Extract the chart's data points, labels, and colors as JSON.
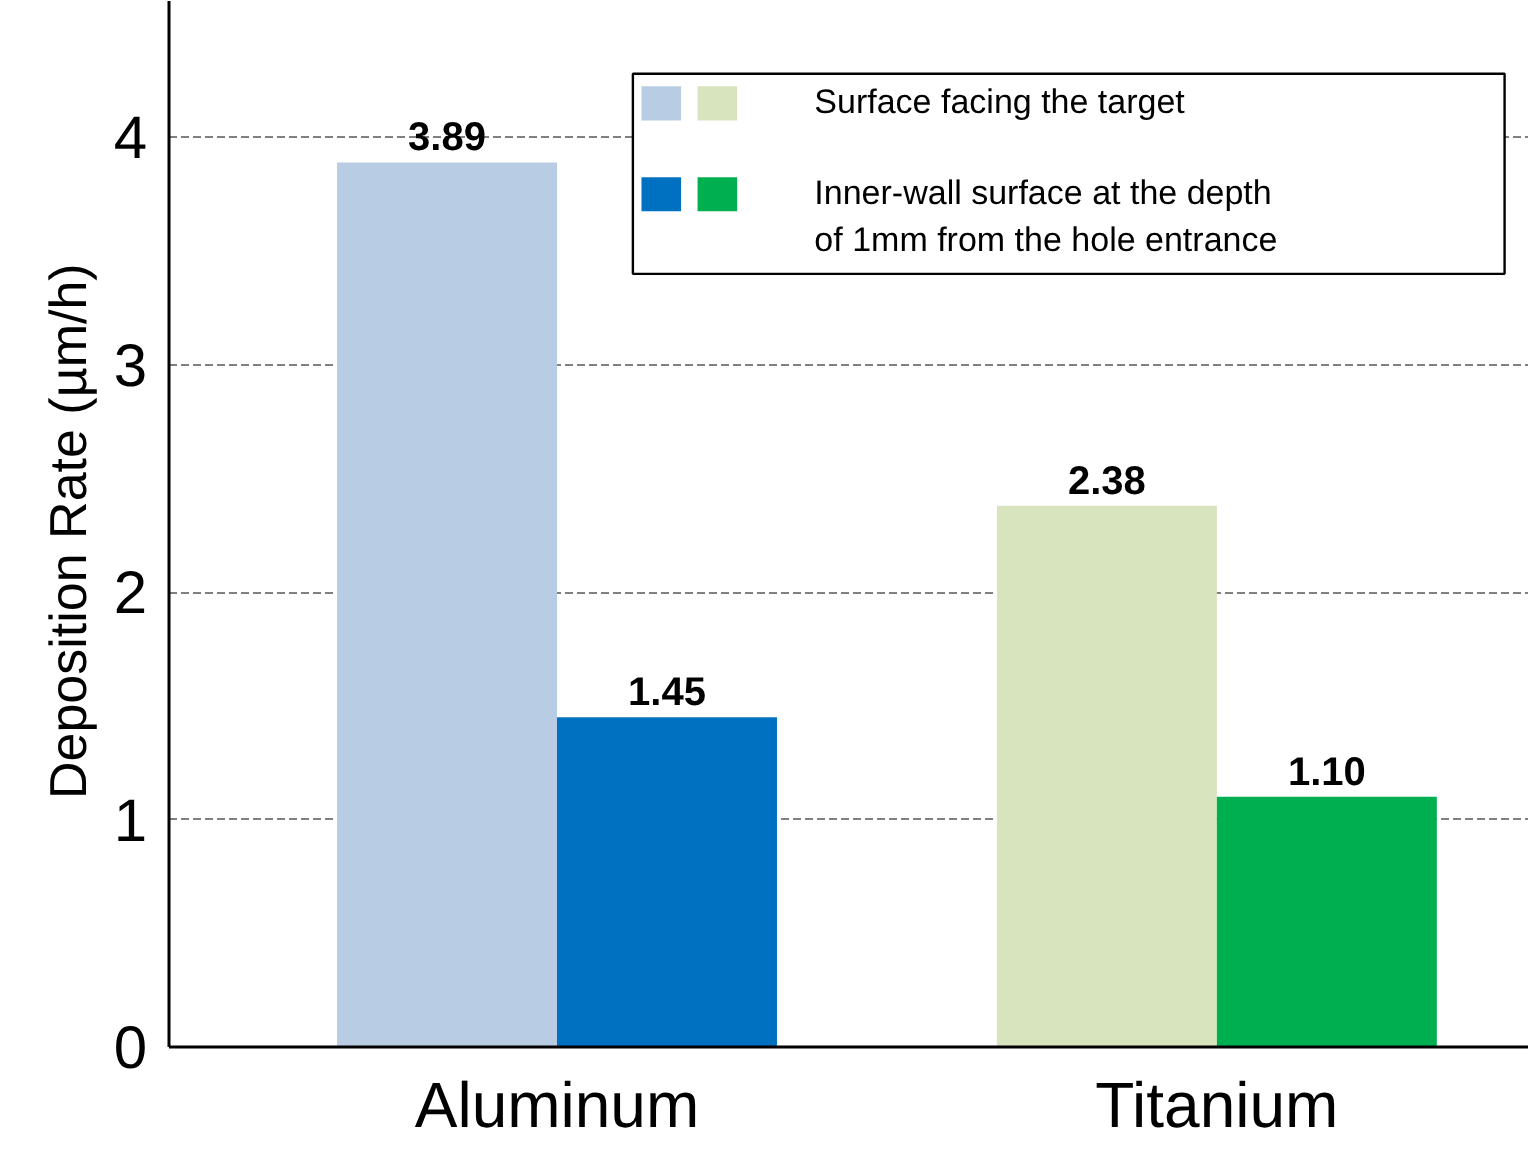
{
  "chart_data": {
    "type": "bar",
    "ylabel": "Deposition Rate  (µm/h)",
    "categories": [
      "Aluminum",
      "Titanium"
    ],
    "series": [
      {
        "name": "Surface facing the target",
        "colors": [
          "#b8cce4",
          "#d7e4bd"
        ],
        "values": [
          3.89,
          2.38
        ],
        "value_labels": [
          "3.89",
          "2.38"
        ]
      },
      {
        "name": "Inner-wall surface at the depth of 1mm from the hole entrance",
        "colors": [
          "#0070c0",
          "#00b050"
        ],
        "values": [
          1.45,
          1.1
        ],
        "value_labels": [
          "1.45",
          "1.10"
        ]
      }
    ],
    "ylim": [
      0,
      4.6
    ],
    "yticks": [
      0,
      1,
      2,
      3,
      4
    ],
    "grid": "y",
    "legend": "top right"
  }
}
